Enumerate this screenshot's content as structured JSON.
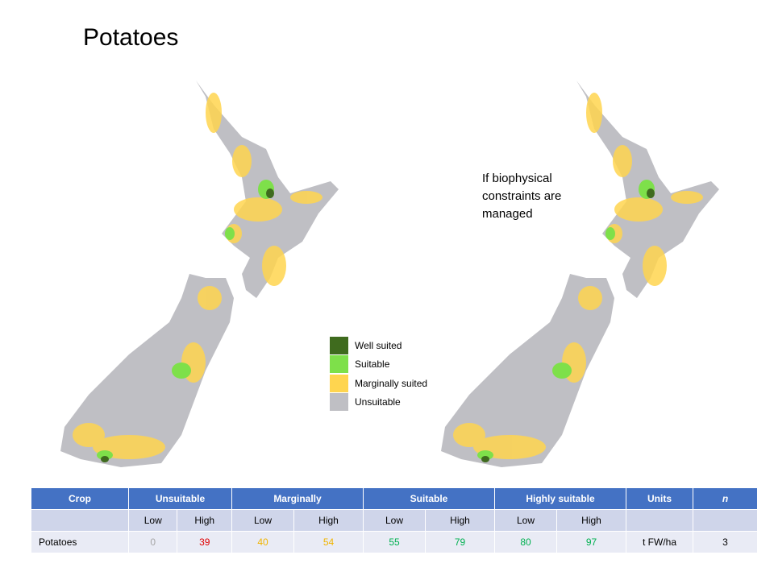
{
  "title": "Potatoes",
  "annotation": "If biophysical constraints are managed",
  "legend": [
    {
      "label": "Well suited",
      "color": "#3f6b1e"
    },
    {
      "label": "Suitable",
      "color": "#7ee04a"
    },
    {
      "label": "Marginally suited",
      "color": "#ffd54f"
    },
    {
      "label": "Unsuitable",
      "color": "#bfbfc4"
    }
  ],
  "table": {
    "header": [
      "Crop",
      "Unsuitable",
      "Marginally",
      "Suitable",
      "Highly suitable",
      "Units",
      "n"
    ],
    "subheader": [
      "Low",
      "High",
      "Low",
      "High",
      "Low",
      "High",
      "Low",
      "High"
    ],
    "rows": [
      [
        "Potatoes",
        0,
        39,
        40,
        54,
        55,
        79,
        80,
        97,
        "t FW/ha",
        3
      ]
    ]
  }
}
